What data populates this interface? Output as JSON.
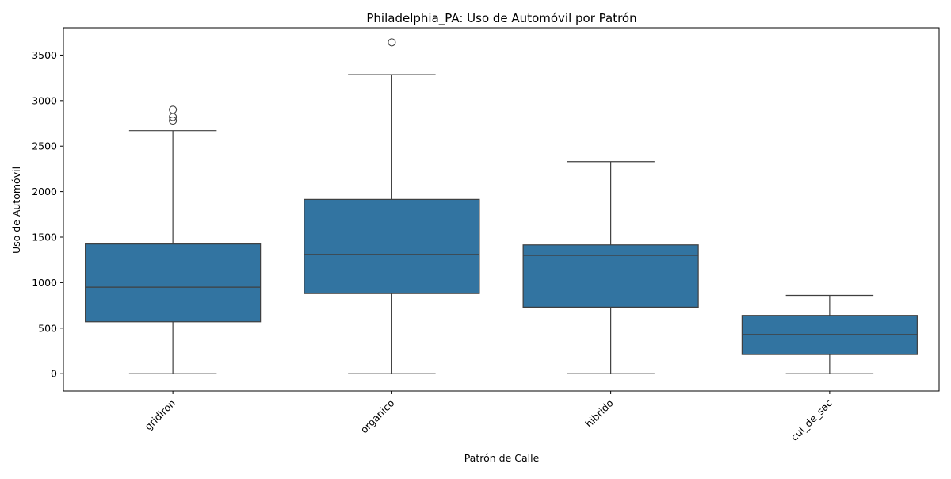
{
  "chart_data": {
    "type": "box",
    "title": "Philadelphia_PA: Uso de Automóvil por Patrón",
    "xlabel": "Patrón de Calle",
    "ylabel": "Uso de Automóvil",
    "categories": [
      "gridiron",
      "organico",
      "hibrido",
      "cul_de_sac"
    ],
    "ylim": [
      -190,
      3800
    ],
    "yticks": [
      0,
      500,
      1000,
      1500,
      2000,
      2500,
      3000,
      3500
    ],
    "grid": false,
    "legend": "none",
    "box_color": "#3274a1",
    "line_color": "#3f3f3f",
    "boxes": [
      {
        "category": "gridiron",
        "whisker_low": 0,
        "q1": 570,
        "median": 950,
        "q3": 1425,
        "whisker_high": 2670,
        "outliers": [
          2780,
          2820,
          2900
        ]
      },
      {
        "category": "organico",
        "whisker_low": 0,
        "q1": 880,
        "median": 1310,
        "q3": 1915,
        "whisker_high": 3285,
        "outliers": [
          3640
        ]
      },
      {
        "category": "hibrido",
        "whisker_low": 0,
        "q1": 730,
        "median": 1300,
        "q3": 1415,
        "whisker_high": 2330,
        "outliers": []
      },
      {
        "category": "cul_de_sac",
        "whisker_low": 0,
        "q1": 210,
        "median": 430,
        "q3": 640,
        "whisker_high": 860,
        "outliers": []
      }
    ]
  }
}
